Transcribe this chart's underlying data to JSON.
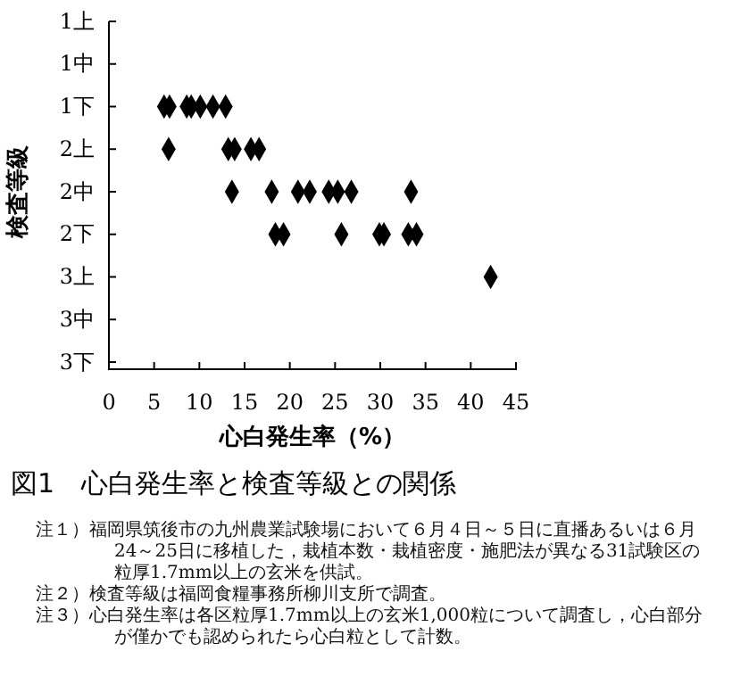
{
  "chart_data": {
    "type": "scatter",
    "orientation": "horizontal",
    "title": "図1　心白発生率と検査等級との関係",
    "xlabel": "心白発生率（%）",
    "ylabel": "検査等級",
    "xlim": [
      0,
      45
    ],
    "xticks": [
      0,
      5,
      10,
      15,
      20,
      25,
      30,
      35,
      40,
      45
    ],
    "categories": [
      "1上",
      "1中",
      "1下",
      "2上",
      "2中",
      "2下",
      "3上",
      "3中",
      "3下"
    ],
    "marker": "diamond",
    "grid": false,
    "series": [
      {
        "color": "#000000",
        "values": [
          null,
          null,
          6.1,
          6.6,
          13.6,
          18.4,
          42.2,
          null,
          null
        ]
      },
      {
        "color": "#000000",
        "values": [
          null,
          null,
          6.7,
          13.2,
          18.0,
          19.3,
          null,
          null,
          null
        ]
      },
      {
        "color": "#000000",
        "values": [
          null,
          null,
          8.6,
          13.9,
          20.9,
          25.7,
          null,
          null,
          null
        ]
      },
      {
        "color": "#000000",
        "values": [
          null,
          null,
          9.1,
          15.7,
          22.2,
          29.9,
          null,
          null,
          null
        ]
      },
      {
        "color": "#000000",
        "values": [
          null,
          null,
          10.1,
          16.6,
          24.3,
          30.4,
          null,
          null,
          null
        ]
      },
      {
        "color": "#000000",
        "values": [
          null,
          null,
          11.5,
          null,
          25.3,
          33.1,
          null,
          null,
          null
        ]
      },
      {
        "color": "#000000",
        "values": [
          null,
          null,
          12.9,
          null,
          26.8,
          34.0,
          null,
          null,
          null
        ]
      },
      {
        "color": "#000000",
        "values": [
          null,
          null,
          null,
          null,
          33.4,
          null,
          null,
          null,
          null
        ]
      }
    ],
    "annotations": [
      "注１）福岡県筑後市の九州農業試験場において６月４日～５日に直播あるいは６月24～25日に移植した，栽植本数・栽植密度・施肥法が異なる31試験区の粒厚1.7mm以上の玄米を供試。",
      "注２）検査等級は福岡食糧事務所柳川支所で調査。",
      "注３）心白発生率は各区粒厚1.7mm以上の玄米1,000粒について調査し，心白部分が僅かでも認められたら心白粒として計数。"
    ]
  }
}
